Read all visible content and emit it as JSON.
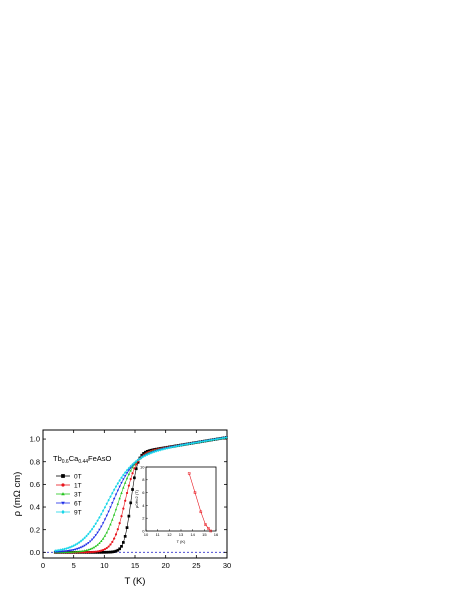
{
  "chart_data": [
    {
      "type": "line",
      "compound_label": {
        "main": "Tb",
        "sub1": "0.6",
        "mid": "Ca",
        "sub2": "0.44",
        "tail": "FeAsO"
      },
      "xlabel": "T (K)",
      "ylabel": "ρ (mΩ cm)",
      "xlim": [
        0,
        30
      ],
      "ylim": [
        -0.05,
        1.08
      ],
      "x_ticks": [
        "0",
        "5",
        "10",
        "15",
        "20",
        "25",
        "30"
      ],
      "y_ticks": [
        "0.0",
        "0.2",
        "0.4",
        "0.6",
        "0.8",
        "1.0"
      ],
      "x_tick_values": [
        0,
        5,
        10,
        15,
        20,
        25,
        30
      ],
      "y_tick_values": [
        0.0,
        0.2,
        0.4,
        0.6,
        0.8,
        1.0
      ],
      "reference_line": {
        "y": 0.0,
        "style": "dashed",
        "color": "#3333cc"
      },
      "legend_position": "left-middle",
      "series": [
        {
          "name": "0T",
          "color": "#000000",
          "marker": "square",
          "Tc": 14.3,
          "width": 0.55
        },
        {
          "name": "1T",
          "color": "#e8141c",
          "marker": "circle",
          "Tc": 13.3,
          "width": 0.95
        },
        {
          "name": "3T",
          "color": "#22c41c",
          "marker": "triangle-up",
          "Tc": 12.2,
          "width": 1.35
        },
        {
          "name": "6T",
          "color": "#1a2ae8",
          "marker": "triangle-down",
          "Tc": 11.2,
          "width": 1.75
        },
        {
          "name": "9T",
          "color": "#19d6e8",
          "marker": "diamond",
          "Tc": 10.3,
          "width": 2.1
        }
      ],
      "normal_state": {
        "T0": 15.0,
        "rho0": 0.88,
        "slope": 0.009
      }
    },
    {
      "type": "line",
      "role": "inset",
      "xlabel": "T (K)",
      "ylabel": "μ0Hc2 (T)",
      "xlim": [
        10,
        16
      ],
      "ylim": [
        0,
        10
      ],
      "x_ticks": [
        "10",
        "11",
        "12",
        "13",
        "14",
        "15",
        "16"
      ],
      "y_ticks": [
        "0",
        "2",
        "4",
        "6",
        "8",
        "10"
      ],
      "x_tick_values": [
        10,
        11,
        12,
        13,
        14,
        15,
        16
      ],
      "y_tick_values": [
        0,
        2,
        4,
        6,
        8,
        10
      ],
      "series": [
        {
          "name": "",
          "color": "#e8141c",
          "marker": "square-open",
          "x": [
            13.7,
            14.2,
            14.7,
            15.1,
            15.35,
            15.55
          ],
          "y": [
            9.0,
            6.0,
            3.0,
            1.0,
            0.4,
            0.0
          ]
        }
      ]
    }
  ]
}
